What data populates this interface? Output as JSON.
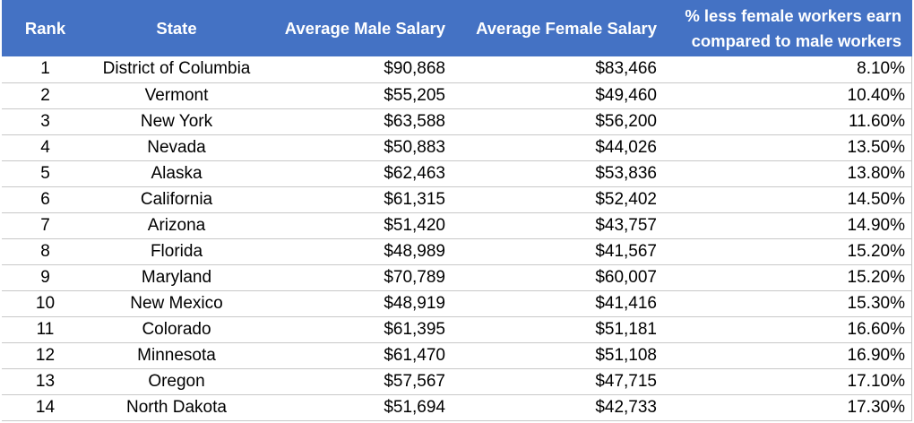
{
  "table": {
    "headers": {
      "rank": "Rank",
      "state": "State",
      "male": "Average Male Salary",
      "female": "Average Female Salary",
      "pct": "% less female workers earn compared to male workers"
    },
    "rows": [
      {
        "rank": "1",
        "state": "District of Columbia",
        "male": "$90,868",
        "female": "$83,466",
        "pct": "8.10%"
      },
      {
        "rank": "2",
        "state": "Vermont",
        "male": "$55,205",
        "female": "$49,460",
        "pct": "10.40%"
      },
      {
        "rank": "3",
        "state": "New York",
        "male": "$63,588",
        "female": "$56,200",
        "pct": "11.60%"
      },
      {
        "rank": "4",
        "state": "Nevada",
        "male": "$50,883",
        "female": "$44,026",
        "pct": "13.50%"
      },
      {
        "rank": "5",
        "state": "Alaska",
        "male": "$62,463",
        "female": "$53,836",
        "pct": "13.80%"
      },
      {
        "rank": "6",
        "state": "California",
        "male": "$61,315",
        "female": "$52,402",
        "pct": "14.50%"
      },
      {
        "rank": "7",
        "state": "Arizona",
        "male": "$51,420",
        "female": "$43,757",
        "pct": "14.90%"
      },
      {
        "rank": "8",
        "state": "Florida",
        "male": "$48,989",
        "female": "$41,567",
        "pct": "15.20%"
      },
      {
        "rank": "9",
        "state": "Maryland",
        "male": "$70,789",
        "female": "$60,007",
        "pct": "15.20%"
      },
      {
        "rank": "10",
        "state": "New Mexico",
        "male": "$48,919",
        "female": "$41,416",
        "pct": "15.30%"
      },
      {
        "rank": "11",
        "state": "Colorado",
        "male": "$61,395",
        "female": "$51,181",
        "pct": "16.60%"
      },
      {
        "rank": "12",
        "state": "Minnesota",
        "male": "$61,470",
        "female": "$51,108",
        "pct": "16.90%"
      },
      {
        "rank": "13",
        "state": "Oregon",
        "male": "$57,567",
        "female": "$47,715",
        "pct": "17.10%"
      },
      {
        "rank": "14",
        "state": "North Dakota",
        "male": "$51,694",
        "female": "$42,733",
        "pct": "17.30%"
      }
    ]
  },
  "colors": {
    "header_bg": "#4472c4",
    "header_text": "#ffffff",
    "grid_line": "#c8c8c8"
  }
}
